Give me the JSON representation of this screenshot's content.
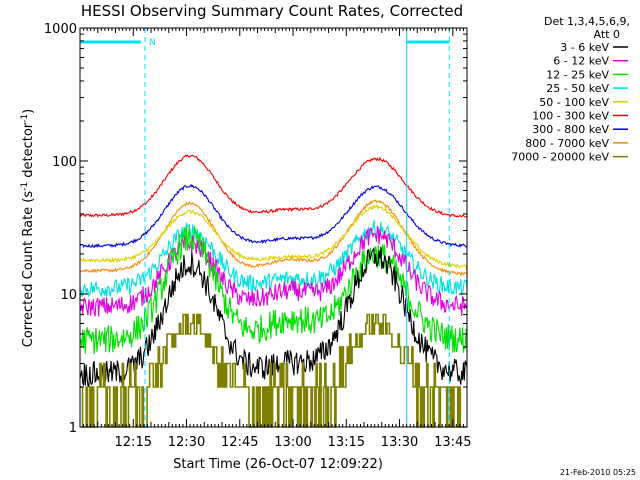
{
  "chart_data": {
    "type": "line",
    "title": "HESSI Observing Summary Count Rates, Corrected",
    "xlabel": "Start Time (26-Oct-07 12:09:22)",
    "ylabel": "Corrected Count Rate (s⁻¹ detector⁻¹)",
    "ylabel_parts": {
      "pre": "Corrected Count Rate (s",
      "sup1": "-1",
      "mid": " detector",
      "sup2": "-1",
      "post": ")"
    },
    "yscale": "log",
    "ylim": [
      1,
      1000
    ],
    "xlim_minutes": [
      720,
      829
    ],
    "x_ticks": [
      {
        "label": "12:15",
        "minutes": 735
      },
      {
        "label": "12:30",
        "minutes": 750
      },
      {
        "label": "12:45",
        "minutes": 765
      },
      {
        "label": "13:00",
        "minutes": 780
      },
      {
        "label": "13:15",
        "minutes": 795
      },
      {
        "label": "13:30",
        "minutes": 810
      },
      {
        "label": "13:45",
        "minutes": 825
      }
    ],
    "y_ticks": [
      {
        "label": "1",
        "value": 1
      },
      {
        "label": "10",
        "value": 10
      },
      {
        "label": "100",
        "value": 100
      },
      {
        "label": "1000",
        "value": 1000
      }
    ],
    "legend_header": [
      "Det 1,3,4,5,6,9,",
      "Att 0"
    ],
    "legend_position": "right",
    "series": [
      {
        "name": "3 - 6 keV",
        "color": "#000000",
        "start": 2.5,
        "peak1": 17,
        "trough": 3.0,
        "peak2": 19,
        "end": 2.5,
        "noise": 0.09
      },
      {
        "name": "6 - 12 keV",
        "color": "#e000e0",
        "start": 8.0,
        "peak1": 24,
        "trough": 10.5,
        "peak2": 28,
        "end": 8.0,
        "noise": 0.07
      },
      {
        "name": "12 - 25 keV",
        "color": "#00e000",
        "start": 4.5,
        "peak1": 26,
        "trough": 6.5,
        "peak2": 20,
        "end": 4.5,
        "noise": 0.1
      },
      {
        "name": "25 - 50 keV",
        "color": "#00e0e0",
        "start": 11.0,
        "peak1": 30,
        "trough": 13.0,
        "peak2": 31,
        "end": 11.0,
        "noise": 0.06
      },
      {
        "name": "50 - 100 keV",
        "color": "#e0d000",
        "start": 18.0,
        "peak1": 43,
        "trough": 19.0,
        "peak2": 44,
        "end": 16.0,
        "noise": 0.03
      },
      {
        "name": "100 - 300 keV",
        "color": "#ff0000",
        "start": 39.0,
        "peak1": 110,
        "trough": 43.0,
        "peak2": 103,
        "end": 38.0,
        "noise": 0.025
      },
      {
        "name": "300 - 800 keV",
        "color": "#0000e0",
        "start": 23.0,
        "peak1": 65,
        "trough": 26.0,
        "peak2": 64,
        "end": 23.0,
        "noise": 0.025
      },
      {
        "name": "800 - 7000 keV",
        "color": "#ff8800",
        "start": 15.0,
        "peak1": 49,
        "trough": 18.0,
        "peak2": 49,
        "end": 14.0,
        "noise": 0.025
      },
      {
        "name": "7000 - 20000 keV",
        "color": "#808000",
        "start": 1.5,
        "peak1": 6.0,
        "trough": 2.0,
        "peak2": 6.0,
        "end": 1.5,
        "noise": 0.0
      }
    ],
    "flag_text": "N",
    "flag_color": "#00e0ff",
    "attenuator_lines_minutes": [
      738.3,
      812,
      824
    ]
  },
  "footer_timestamp": "21-Feb-2010 05:25"
}
